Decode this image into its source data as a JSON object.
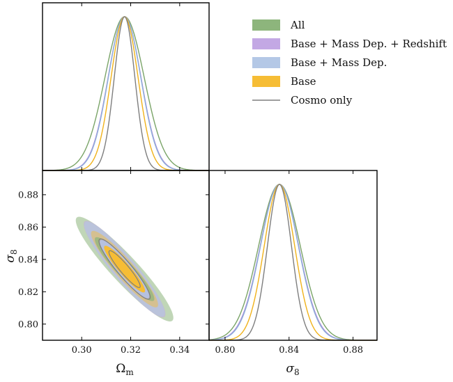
{
  "chart_data": {
    "type": "corner",
    "parameters": [
      "Ω_m",
      "σ_8"
    ],
    "xlabels": [
      "Ωm",
      "σ8"
    ],
    "ylabel": "σ8",
    "panels": {
      "omega_m_1d": {
        "xlim": [
          0.284,
          0.352
        ],
        "ticks": [
          0.3,
          0.32,
          0.34
        ],
        "tick_labels": [
          "0.30",
          "0.32",
          "0.34"
        ],
        "show_tick_labels": false
      },
      "omega_sigma_2d": {
        "xlim": [
          0.284,
          0.352
        ],
        "ylim": [
          0.79,
          0.895
        ],
        "xticks": [
          0.3,
          0.32,
          0.34
        ],
        "xtick_labels": [
          "0.30",
          "0.32",
          "0.34"
        ],
        "yticks": [
          0.8,
          0.82,
          0.84,
          0.86,
          0.88
        ],
        "ytick_labels": [
          "0.80",
          "0.82",
          "0.84",
          "0.86",
          "0.88"
        ]
      },
      "sigma8_1d": {
        "xlim": [
          0.79,
          0.895
        ],
        "ticks": [
          0.8,
          0.84,
          0.88
        ],
        "tick_labels": [
          "0.80",
          "0.84",
          "0.88"
        ]
      }
    },
    "series": [
      {
        "name": "All",
        "color": "#8db57c",
        "line_color": "#7aa468",
        "omega_m": {
          "mean": 0.3175,
          "sigma": 0.008
        },
        "sigma8": {
          "mean": 0.834,
          "sigma": 0.013
        },
        "corr": -0.93
      },
      {
        "name": "Base + Mass Dep. + Redshift",
        "color": "#c3a8e4",
        "line_color": "#a985d8",
        "omega_m": {
          "mean": 0.3175,
          "sigma": 0.0067
        },
        "sigma8": {
          "mean": 0.834,
          "sigma": 0.012
        },
        "corr": -0.93
      },
      {
        "name": "Base + Mass Dep.",
        "color": "#b4c8e6",
        "line_color": "#8fb0da",
        "omega_m": {
          "mean": 0.3175,
          "sigma": 0.0066
        },
        "sigma8": {
          "mean": 0.834,
          "sigma": 0.0118
        },
        "corr": -0.93
      },
      {
        "name": "Base",
        "color": "#f6bd35",
        "line_color": "#f0b21a",
        "omega_m": {
          "mean": 0.3175,
          "sigma": 0.0055
        },
        "sigma8": {
          "mean": 0.834,
          "sigma": 0.0095
        },
        "corr": -0.93
      },
      {
        "name": "Cosmo only",
        "color": "#7e7e7e",
        "line_color": "#7e7e7e",
        "line_only": true,
        "omega_m": {
          "mean": 0.3175,
          "sigma": 0.0042
        },
        "sigma8": {
          "mean": 0.834,
          "sigma": 0.0075
        },
        "corr": -0.93
      }
    ],
    "legend": {
      "position": "top-right",
      "entries": [
        "All",
        "Base + Mass Dep. + Redshift",
        "Base + Mass Dep.",
        "Base",
        "Cosmo only"
      ]
    }
  }
}
